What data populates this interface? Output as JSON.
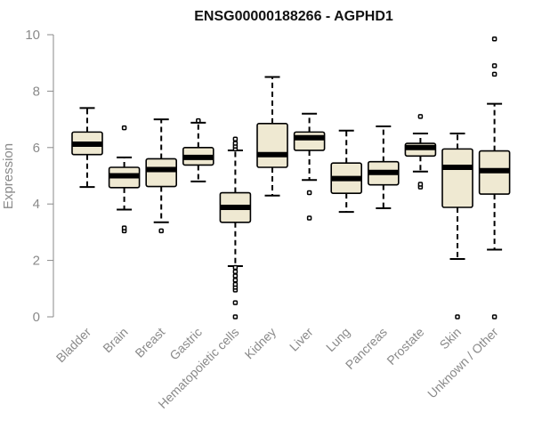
{
  "chart_data": {
    "type": "boxplot",
    "title": "ENSG00000188266 - AGPHD1",
    "xlabel": "",
    "ylabel": "Expression",
    "ylim": [
      0,
      10
    ],
    "yticks": [
      0,
      2,
      4,
      6,
      8,
      10
    ],
    "box_fill": "#efe9d2",
    "box_stroke": "#000000",
    "categories": [
      "Bladder",
      "Brain",
      "Breast",
      "Gastric",
      "Hematopoietic cells",
      "Kidney",
      "Liver",
      "Lung",
      "Pancreas",
      "Prostate",
      "Skin",
      "Unknown / Other"
    ],
    "boxes": [
      {
        "name": "Bladder",
        "whisker_low": 4.6,
        "q1": 5.75,
        "median": 6.12,
        "q3": 6.55,
        "whisker_high": 7.4,
        "outliers": []
      },
      {
        "name": "Brain",
        "whisker_low": 3.8,
        "q1": 4.58,
        "median": 5.0,
        "q3": 5.3,
        "whisker_high": 5.65,
        "outliers": [
          3.05,
          3.15,
          6.7
        ]
      },
      {
        "name": "Breast",
        "whisker_low": 3.35,
        "q1": 4.62,
        "median": 5.22,
        "q3": 5.6,
        "whisker_high": 7.0,
        "outliers": [
          3.05
        ]
      },
      {
        "name": "Gastric",
        "whisker_low": 4.8,
        "q1": 5.38,
        "median": 5.65,
        "q3": 6.0,
        "whisker_high": 6.88,
        "outliers": [
          6.95
        ]
      },
      {
        "name": "Hematopoietic cells",
        "whisker_low": 1.8,
        "q1": 3.35,
        "median": 3.88,
        "q3": 4.4,
        "whisker_high": 5.9,
        "outliers": [
          0.0,
          0.5,
          0.95,
          1.05,
          1.15,
          1.3,
          1.45,
          1.6,
          1.75,
          5.95,
          6.05,
          6.15,
          6.3
        ]
      },
      {
        "name": "Kidney",
        "whisker_low": 4.3,
        "q1": 5.3,
        "median": 5.75,
        "q3": 6.85,
        "whisker_high": 8.5,
        "outliers": []
      },
      {
        "name": "Liver",
        "whisker_low": 4.85,
        "q1": 5.9,
        "median": 6.35,
        "q3": 6.55,
        "whisker_high": 7.2,
        "outliers": [
          3.5,
          4.4
        ]
      },
      {
        "name": "Lung",
        "whisker_low": 3.72,
        "q1": 4.38,
        "median": 4.9,
        "q3": 5.45,
        "whisker_high": 6.6,
        "outliers": []
      },
      {
        "name": "Pancreas",
        "whisker_low": 3.85,
        "q1": 4.68,
        "median": 5.12,
        "q3": 5.5,
        "whisker_high": 6.75,
        "outliers": []
      },
      {
        "name": "Prostate",
        "whisker_low": 5.15,
        "q1": 5.7,
        "median": 6.0,
        "q3": 6.15,
        "whisker_high": 6.5,
        "outliers": [
          4.6,
          4.7,
          7.1
        ]
      },
      {
        "name": "Skin",
        "whisker_low": 2.05,
        "q1": 3.88,
        "median": 5.3,
        "q3": 5.95,
        "whisker_high": 6.5,
        "outliers": [
          0.0
        ]
      },
      {
        "name": "Unknown / Other",
        "whisker_low": 2.38,
        "q1": 4.35,
        "median": 5.18,
        "q3": 5.88,
        "whisker_high": 7.55,
        "outliers": [
          0.0,
          8.6,
          8.9,
          9.85
        ]
      }
    ]
  }
}
